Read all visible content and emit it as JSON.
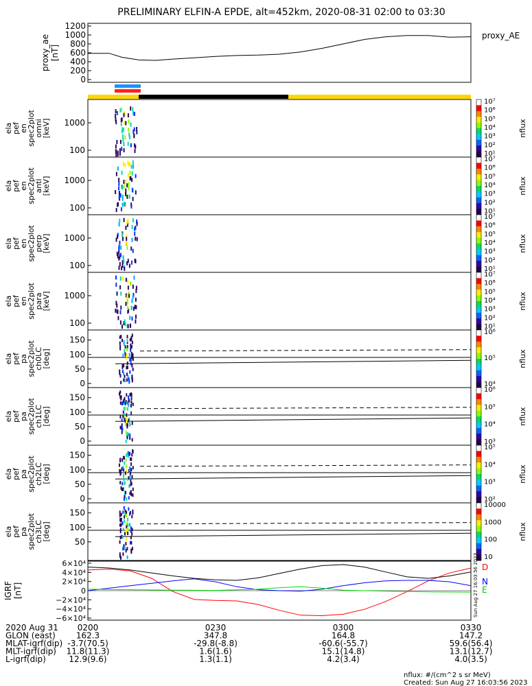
{
  "title": "PRELIMINARY ELFIN-A EPDE, alt=452km, 2020-08-31 02:00 to 03:30",
  "time_axis": {
    "rows": [
      {
        "label": "2020 Aug 31",
        "values": [
          "0200",
          "0230",
          "0300",
          "0330"
        ]
      },
      {
        "label": "GLON (east)",
        "values": [
          "162.3",
          "347.8",
          "164.8",
          "147.2"
        ]
      },
      {
        "label": "MLAT-igrf(dip)",
        "values": [
          "-3.7(70.5)",
          "-29.8(-8.8)",
          "-60.6(-55.7)",
          "59.6(56.4)"
        ]
      },
      {
        "label": "MLT-igrf(dip)",
        "values": [
          "11.8(11.3)",
          "1.6(1.6)",
          "15.1(14.8)",
          "13.1(12.7)"
        ]
      },
      {
        "label": "L-igrf(dip)",
        "values": [
          "12.9(9.6)",
          "1.3(1.1)",
          "4.2(3.4)",
          "4.0(3.5)"
        ]
      }
    ]
  },
  "footer": {
    "units": "nflux: #/(cm^2 s sr MeV)",
    "created": "Created: Sun Aug 27 16:03:56 2023",
    "side_stamp": "Sun Aug 27 16:03:56 2023"
  },
  "panels": [
    {
      "ylabel_lines": [
        "ela",
        "pef",
        "en",
        "spec2plot",
        "omni",
        "[keV]"
      ],
      "ticks": [
        "1000",
        "100"
      ],
      "cbar_ticks": [
        "10⁷",
        "10⁶",
        "10⁵",
        "10⁴",
        "10³",
        "10²",
        "10¹"
      ],
      "cbar_label": "nflux"
    },
    {
      "ylabel_lines": [
        "ela",
        "pef",
        "en",
        "spec2plot",
        "anti",
        "[keV]"
      ],
      "ticks": [
        "1000",
        "100"
      ],
      "cbar_ticks": [
        "10⁷",
        "10⁶",
        "10⁵",
        "10⁴",
        "10³",
        "10²",
        "10¹"
      ],
      "cbar_label": "nflux"
    },
    {
      "ylabel_lines": [
        "ela",
        "pef",
        "en",
        "spec2plot",
        "perp",
        "[keV]"
      ],
      "ticks": [
        "1000",
        "100"
      ],
      "cbar_ticks": [
        "10⁷",
        "10⁶",
        "10⁵",
        "10⁴",
        "10³",
        "10²",
        "10¹"
      ],
      "cbar_label": "nflux"
    },
    {
      "ylabel_lines": [
        "ela",
        "pef",
        "en",
        "spec2plot",
        "para",
        "[keV]"
      ],
      "ticks": [
        "1000",
        "100"
      ],
      "cbar_ticks": [
        "10⁷",
        "10⁶",
        "10⁵",
        "10⁴",
        "10³",
        "10²",
        "10¹"
      ],
      "cbar_label": "nflux"
    },
    {
      "ylabel_lines": [
        "ela",
        "pef",
        "pa",
        "spec2plot",
        "ch0LC",
        "[deg]"
      ],
      "ticks": [
        "150",
        "100",
        "50",
        "0"
      ],
      "cbar_ticks": [
        "10⁶",
        "10⁵",
        "10⁴"
      ],
      "cbar_label": "nflux"
    },
    {
      "ylabel_lines": [
        "ela",
        "pef",
        "pa",
        "spec2plot",
        "ch1LC",
        "[deg]"
      ],
      "ticks": [
        "150",
        "100",
        "50",
        "0"
      ],
      "cbar_ticks": [
        "10⁶",
        "10⁵",
        "10⁴",
        "10³"
      ],
      "cbar_label": "nflux"
    },
    {
      "ylabel_lines": [
        "ela",
        "pef",
        "pa",
        "spec2plot",
        "ch2LC",
        "[deg]"
      ],
      "ticks": [
        "150",
        "100",
        "50",
        "0"
      ],
      "cbar_ticks": [
        "10⁵",
        "10⁴",
        "10³",
        "10²"
      ],
      "cbar_label": "nflux"
    },
    {
      "ylabel_lines": [
        "ela",
        "pef",
        "pa",
        "spec2plot",
        "ch3LC",
        "[deg]"
      ],
      "ticks": [
        "150",
        "100",
        "50"
      ],
      "cbar_ticks": [
        "10000",
        "1000",
        "100",
        "10"
      ],
      "cbar_label": "nflux"
    }
  ],
  "chart_data": [
    {
      "type": "line",
      "ylabel": "proxy_ae [nT]",
      "legend": [
        "proxy_AE"
      ],
      "yticks": [
        "1200",
        "1000",
        "800",
        "600",
        "400",
        "200",
        "0"
      ],
      "ylim": [
        0,
        1200
      ],
      "xlim": [
        0,
        90
      ],
      "x_unit": "minutes after 02:00",
      "series": [
        {
          "name": "proxy_AE",
          "color": "#000000",
          "x": [
            0,
            5,
            8,
            12,
            16,
            20,
            25,
            30,
            35,
            40,
            45,
            50,
            55,
            60,
            65,
            70,
            75,
            80,
            85,
            90
          ],
          "values": [
            590,
            590,
            500,
            440,
            430,
            460,
            490,
            520,
            540,
            550,
            570,
            620,
            700,
            800,
            900,
            960,
            990,
            990,
            950,
            960
          ]
        }
      ]
    },
    {
      "type": "line",
      "ylabel": "IGRF [nT]",
      "yticks": [
        "6×10⁴",
        "4×10⁴",
        "2×10⁴",
        "0",
        "−2×10⁴",
        "−4×10⁴",
        "−6×10⁴"
      ],
      "ylim": [
        -60000,
        60000
      ],
      "xlim": [
        0,
        90
      ],
      "x_unit": "minutes after 02:00",
      "legend": [
        "D",
        "N",
        "E"
      ],
      "series": [
        {
          "name": "D",
          "color": "#ff0000",
          "x": [
            0,
            5,
            10,
            15,
            20,
            25,
            30,
            35,
            40,
            45,
            50,
            55,
            60,
            65,
            70,
            75,
            80,
            85,
            90
          ],
          "values": [
            42000,
            44000,
            40000,
            25000,
            -2000,
            -18000,
            -20000,
            -21000,
            -28000,
            -40000,
            -50000,
            -51000,
            -48000,
            -38000,
            -22000,
            -2000,
            20000,
            36000,
            46000
          ]
        },
        {
          "name": "N",
          "color": "#0000ff",
          "x": [
            0,
            5,
            10,
            15,
            20,
            25,
            30,
            35,
            40,
            45,
            50,
            55,
            60,
            65,
            70,
            75,
            80,
            85,
            90
          ],
          "values": [
            0,
            5000,
            10000,
            15000,
            20000,
            24000,
            18000,
            8000,
            2000,
            0,
            -1000,
            3000,
            10000,
            16000,
            20000,
            21000,
            21000,
            18000,
            10000
          ]
        },
        {
          "name": "E",
          "color": "#00dd00",
          "x": [
            0,
            10,
            20,
            30,
            40,
            45,
            50,
            55,
            60,
            70,
            80,
            90
          ],
          "values": [
            3000,
            2000,
            1000,
            500,
            3000,
            6000,
            8000,
            5000,
            1000,
            -1000,
            -2500,
            -3000
          ]
        },
        {
          "name": "total",
          "color": "#000000",
          "x": [
            0,
            5,
            10,
            15,
            20,
            25,
            30,
            35,
            40,
            45,
            50,
            55,
            60,
            65,
            70,
            75,
            80,
            85,
            90
          ],
          "values": [
            48000,
            46000,
            42000,
            36000,
            30000,
            25000,
            22000,
            21000,
            26000,
            35000,
            44000,
            51000,
            53000,
            48000,
            38000,
            28000,
            25000,
            30000,
            38000
          ]
        }
      ]
    }
  ]
}
